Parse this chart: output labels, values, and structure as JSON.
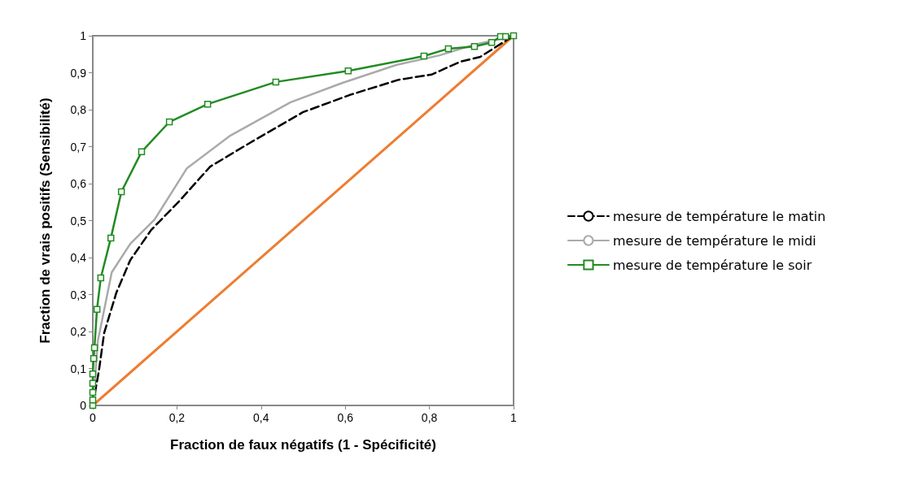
{
  "chart_data": {
    "type": "line",
    "xlabel": "Fraction de faux négatifs (1 - Spécificité)",
    "ylabel": "Fraction de vrais positifs (Sensibilité)",
    "xlim": [
      0,
      1
    ],
    "ylim": [
      0,
      1
    ],
    "xticks": [
      0,
      {
        "value": 0.2,
        "label": "0,2"
      },
      {
        "value": 0.4,
        "label": "0,4"
      },
      {
        "value": 0.6,
        "label": "0,6"
      },
      {
        "value": 0.8,
        "label": "0,8"
      },
      1
    ],
    "yticks": [
      0,
      {
        "value": 0.1,
        "label": "0,1"
      },
      {
        "value": 0.2,
        "label": "0,2"
      },
      {
        "value": 0.3,
        "label": "0,3"
      },
      {
        "value": 0.4,
        "label": "0,4"
      },
      {
        "value": 0.5,
        "label": "0,5"
      },
      {
        "value": 0.6,
        "label": "0,6"
      },
      {
        "value": 0.7,
        "label": "0,7"
      },
      {
        "value": 0.8,
        "label": "0,8"
      },
      {
        "value": 0.9,
        "label": "0,9"
      },
      1
    ],
    "grid": false,
    "legend": "right",
    "series": [
      {
        "name": "mesure de température le matin",
        "color": "#000000",
        "line_style": "dashed",
        "marker": "none",
        "x": [
          0,
          0.015,
          0.027,
          0.056,
          0.089,
          0.139,
          0.205,
          0.279,
          0.373,
          0.499,
          0.611,
          0.727,
          0.805,
          0.874,
          0.921,
          1
        ],
        "values": [
          0,
          0.097,
          0.196,
          0.305,
          0.393,
          0.475,
          0.552,
          0.646,
          0.71,
          0.793,
          0.84,
          0.881,
          0.895,
          0.93,
          0.943,
          1
        ]
      },
      {
        "name": "mesure de température le midi",
        "color": "#aaaaaa",
        "line_style": "solid",
        "marker": "none",
        "x": [
          0,
          0.006,
          0.012,
          0.045,
          0.089,
          0.147,
          0.224,
          0.327,
          0.47,
          0.592,
          0.721,
          0.824,
          0.901,
          1
        ],
        "values": [
          0,
          0.085,
          0.174,
          0.36,
          0.437,
          0.503,
          0.642,
          0.73,
          0.82,
          0.872,
          0.921,
          0.947,
          0.974,
          1
        ]
      },
      {
        "name": "mesure de température le soir",
        "color": "#228b22",
        "line_style": "solid",
        "marker": "square",
        "x": [
          0,
          0,
          0,
          0,
          0,
          0.002,
          0.004,
          0.01,
          0.019,
          0.043,
          0.068,
          0.116,
          0.182,
          0.273,
          0.435,
          0.607,
          0.787,
          0.845,
          0.907,
          0.948,
          0.969,
          0.981,
          1
        ],
        "values": [
          0,
          0.015,
          0.035,
          0.06,
          0.085,
          0.127,
          0.156,
          0.26,
          0.345,
          0.453,
          0.578,
          0.686,
          0.767,
          0.815,
          0.875,
          0.905,
          0.945,
          0.965,
          0.971,
          0.982,
          0.998,
          0.998,
          1
        ]
      },
      {
        "color": "#ed7d31",
        "line_style": "solid",
        "marker": "none",
        "x": [
          0,
          1
        ],
        "values": [
          0,
          1
        ]
      }
    ]
  }
}
